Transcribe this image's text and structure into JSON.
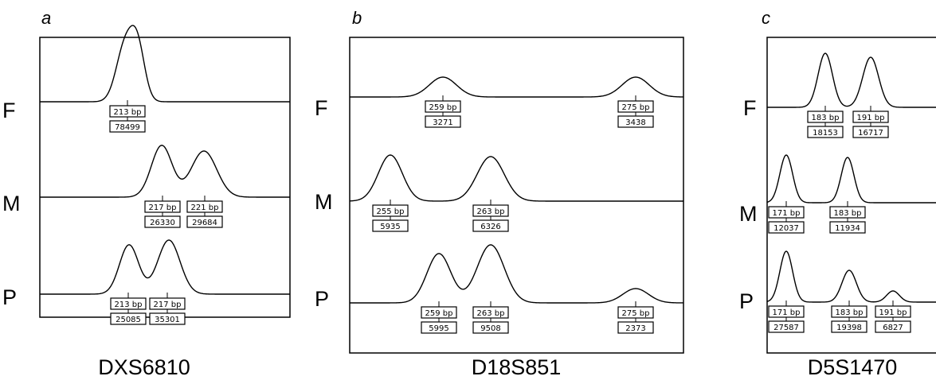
{
  "panels": [
    {
      "letter": "a",
      "marker": "DXS6810",
      "rows": [
        {
          "label": "F",
          "peaks": [
            {
              "size": "213 bp",
              "area": "78499"
            }
          ]
        },
        {
          "label": "M",
          "peaks": [
            {
              "size": "217 bp",
              "area": "26330"
            },
            {
              "size": "221 bp",
              "area": "29684"
            }
          ]
        },
        {
          "label": "P",
          "peaks": [
            {
              "size": "213 bp",
              "area": "25085"
            },
            {
              "size": "217 bp",
              "area": "35301"
            }
          ]
        }
      ]
    },
    {
      "letter": "b",
      "marker": "D18S851",
      "rows": [
        {
          "label": "F",
          "peaks": [
            {
              "size": "259 bp",
              "area": "3271"
            },
            {
              "size": "275 bp",
              "area": "3438"
            }
          ]
        },
        {
          "label": "M",
          "peaks": [
            {
              "size": "255 bp",
              "area": "5935"
            },
            {
              "size": "263 bp",
              "area": "6326"
            }
          ]
        },
        {
          "label": "P",
          "peaks": [
            {
              "size": "259 bp",
              "area": "5995"
            },
            {
              "size": "263 bp",
              "area": "9508"
            },
            {
              "size": "275 bp",
              "area": "2373"
            }
          ]
        }
      ]
    },
    {
      "letter": "c",
      "marker": "D5S1470",
      "rows": [
        {
          "label": "F",
          "peaks": [
            {
              "size": "183 bp",
              "area": "18153"
            },
            {
              "size": "191 bp",
              "area": "16717"
            }
          ]
        },
        {
          "label": "M",
          "peaks": [
            {
              "size": "171 bp",
              "area": "12037"
            },
            {
              "size": "183 bp",
              "area": "11934"
            }
          ]
        },
        {
          "label": "P",
          "peaks": [
            {
              "size": "171 bp",
              "area": "27587"
            },
            {
              "size": "183 bp",
              "area": "19398"
            },
            {
              "size": "191 bp",
              "area": "6827"
            }
          ]
        }
      ]
    }
  ]
}
